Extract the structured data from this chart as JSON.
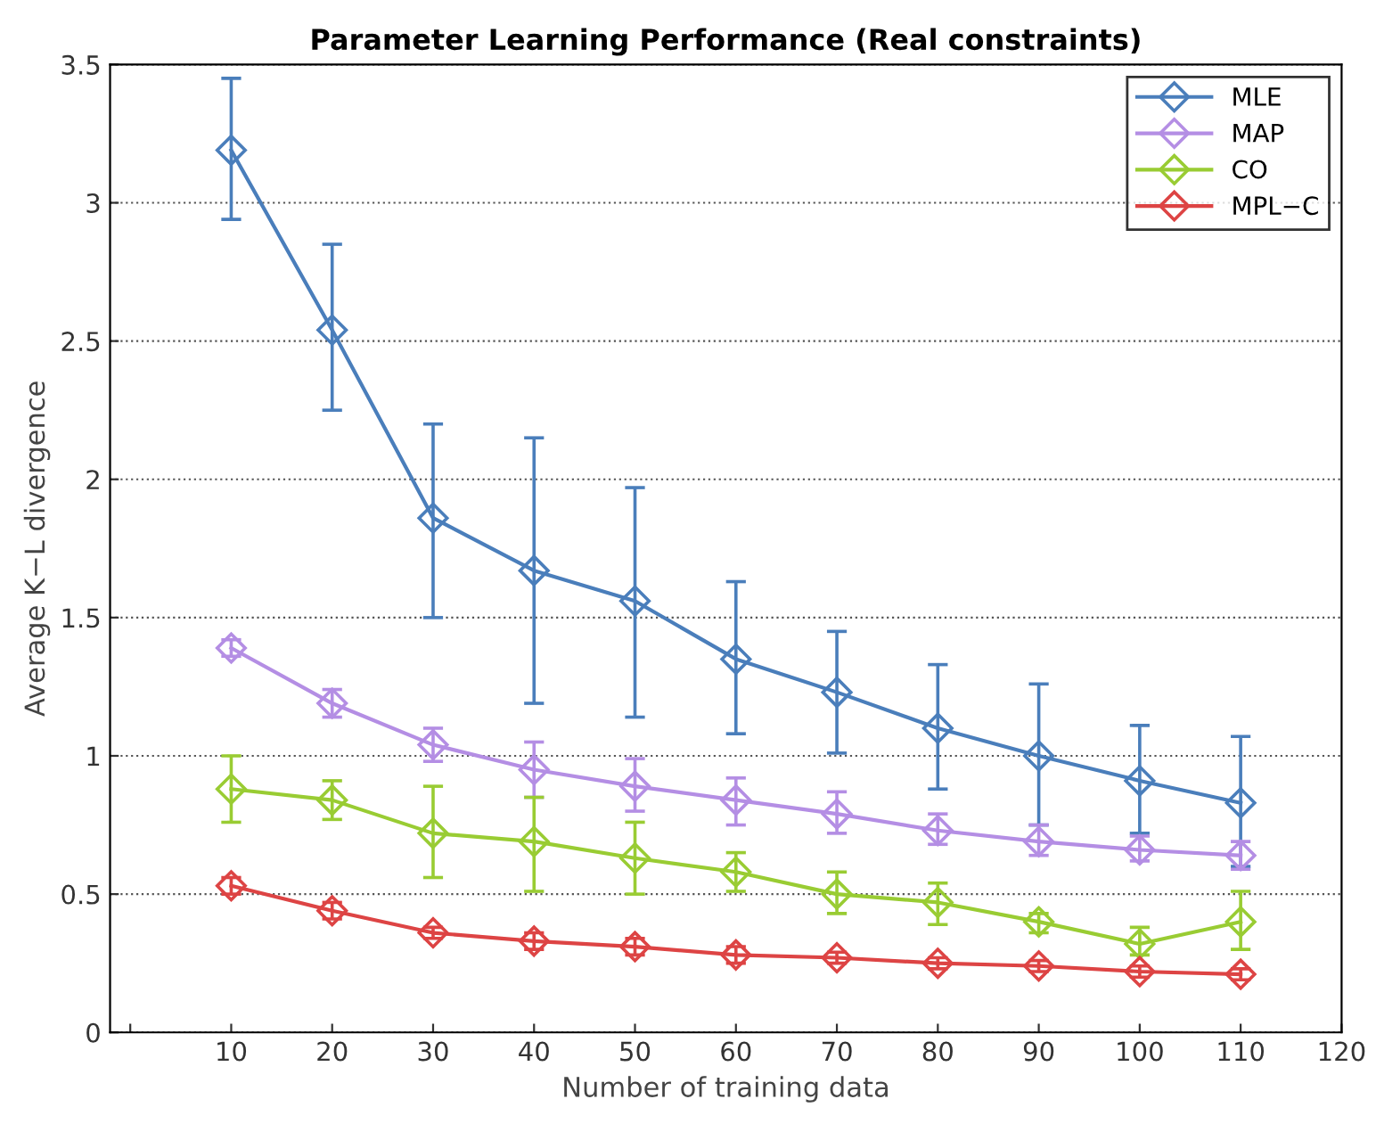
{
  "chart_data": {
    "type": "line",
    "title": "Parameter Learning Performance (Real constraints)",
    "xlabel": "Number of training data",
    "ylabel": "Average K−L divergence",
    "x": [
      10,
      20,
      30,
      40,
      50,
      60,
      70,
      80,
      90,
      100,
      110
    ],
    "xlim": [
      -2,
      120
    ],
    "xticks": [
      {
        "value": 0,
        "label": null
      },
      10,
      20,
      30,
      40,
      50,
      60,
      70,
      80,
      90,
      100,
      110,
      120
    ],
    "ylim": [
      0,
      3.5
    ],
    "yticks": [
      0,
      0.5,
      1,
      1.5,
      2,
      2.5,
      3,
      3.5
    ],
    "grid": "y",
    "legend": "top right",
    "marker": "diamond",
    "line_style": "solid",
    "series": [
      {
        "name": "MLE",
        "color": "#4a7ebb",
        "values": [
          3.19,
          2.54,
          1.86,
          1.67,
          1.56,
          1.35,
          1.23,
          1.1,
          1.0,
          0.91,
          0.83
        ],
        "errors": [
          [
            2.94,
            3.45
          ],
          [
            2.25,
            2.85
          ],
          [
            1.5,
            2.2
          ],
          [
            1.19,
            2.15
          ],
          [
            1.14,
            1.97
          ],
          [
            1.08,
            1.63
          ],
          [
            1.01,
            1.45
          ],
          [
            0.88,
            1.33
          ],
          [
            0.75,
            1.26
          ],
          [
            0.72,
            1.11
          ],
          [
            0.6,
            1.07
          ]
        ]
      },
      {
        "name": "MAP",
        "color": "#b48ee4",
        "values": [
          1.39,
          1.19,
          1.04,
          0.95,
          0.89,
          0.84,
          0.79,
          0.73,
          0.69,
          0.66,
          0.64
        ],
        "errors": [
          [
            1.36,
            1.42
          ],
          [
            1.14,
            1.24
          ],
          [
            0.98,
            1.1
          ],
          [
            0.85,
            1.05
          ],
          [
            0.8,
            0.99
          ],
          [
            0.75,
            0.92
          ],
          [
            0.72,
            0.87
          ],
          [
            0.68,
            0.79
          ],
          [
            0.64,
            0.75
          ],
          [
            0.62,
            0.71
          ],
          [
            0.59,
            0.69
          ]
        ]
      },
      {
        "name": "CO",
        "color": "#99cc33",
        "values": [
          0.88,
          0.84,
          0.72,
          0.69,
          0.63,
          0.58,
          0.5,
          0.47,
          0.4,
          0.32,
          0.4
        ],
        "errors": [
          [
            0.76,
            1.0
          ],
          [
            0.77,
            0.91
          ],
          [
            0.56,
            0.89
          ],
          [
            0.51,
            0.85
          ],
          [
            0.5,
            0.76
          ],
          [
            0.51,
            0.65
          ],
          [
            0.43,
            0.58
          ],
          [
            0.39,
            0.54
          ],
          [
            0.36,
            0.43
          ],
          [
            0.28,
            0.38
          ],
          [
            0.3,
            0.51
          ]
        ]
      },
      {
        "name": "MPL−C",
        "color": "#dd4444",
        "values": [
          0.53,
          0.44,
          0.36,
          0.33,
          0.31,
          0.28,
          0.27,
          0.25,
          0.24,
          0.22,
          0.21
        ],
        "errors": [
          [
            0.5,
            0.56
          ],
          [
            0.41,
            0.47
          ],
          [
            0.34,
            0.38
          ],
          [
            0.3,
            0.36
          ],
          [
            0.28,
            0.34
          ],
          [
            0.25,
            0.31
          ],
          [
            0.25,
            0.29
          ],
          [
            0.23,
            0.27
          ],
          [
            0.22,
            0.26
          ],
          [
            0.2,
            0.24
          ],
          [
            0.19,
            0.23
          ]
        ]
      }
    ]
  }
}
